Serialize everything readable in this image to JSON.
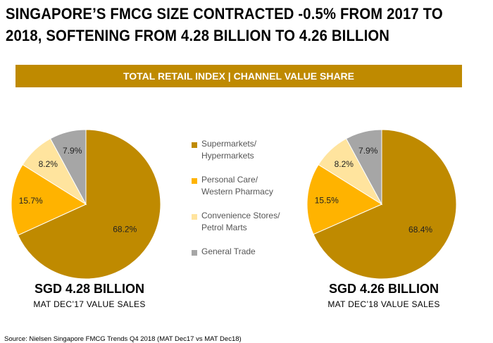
{
  "headline_line1": "SINGAPORE’S FMCG SIZE CONTRACTED -0.5% FROM 2017 TO",
  "headline_line2": "2018, SOFTENING FROM 4.28 BILLION TO 4.26 BILLION",
  "banner": "TOTAL RETAIL INDEX | CHANNEL VALUE SHARE",
  "source": "Source: Nielsen Singapore FMCG Trends Q4 2018 (MAT Dec17 vs MAT Dec18)",
  "legend": [
    {
      "line1": "Supermarkets/",
      "line2": "Hypermarkets",
      "color": "#BF8A00"
    },
    {
      "line1": "Personal Care/",
      "line2": "Western Pharmacy",
      "color": "#FFB300"
    },
    {
      "line1": "Convenience Stores/",
      "line2": "Petrol Marts",
      "color": "#FFE49E"
    },
    {
      "line1": "General Trade",
      "line2": "",
      "color": "#A6A6A6"
    }
  ],
  "chart_data": [
    {
      "type": "pie",
      "total_label": "SGD 4.28 BILLION",
      "period_label": "MAT DEC’17 VALUE SALES",
      "categories": [
        "Supermarkets/Hypermarkets",
        "Personal Care/Western Pharmacy",
        "Convenience Stores/Petrol Marts",
        "General Trade"
      ],
      "values": [
        68.2,
        15.7,
        8.2,
        7.9
      ],
      "labels": [
        "68.2%",
        "15.7%",
        "8.2%",
        "7.9%"
      ],
      "colors": [
        "#BF8A00",
        "#FFB300",
        "#FFE49E",
        "#A6A6A6"
      ]
    },
    {
      "type": "pie",
      "total_label": "SGD 4.26 BILLION",
      "period_label": "MAT DEC’18 VALUE SALES",
      "categories": [
        "Supermarkets/Hypermarkets",
        "Personal Care/Western Pharmacy",
        "Convenience Stores/Petrol Marts",
        "General Trade"
      ],
      "values": [
        68.4,
        15.5,
        8.2,
        7.9
      ],
      "labels": [
        "68.4%",
        "15.5%",
        "8.2%",
        "7.9%"
      ],
      "colors": [
        "#BF8A00",
        "#FFB300",
        "#FFE49E",
        "#A6A6A6"
      ]
    }
  ]
}
